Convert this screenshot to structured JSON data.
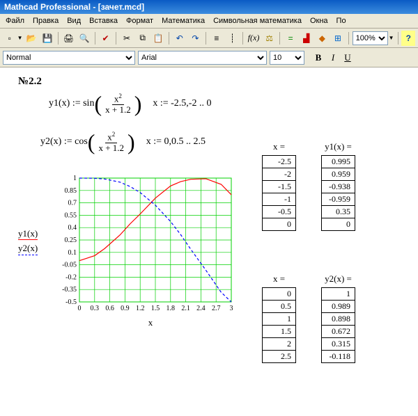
{
  "window": {
    "title": "Mathcad Professional - [зачет.mcd]"
  },
  "menu": {
    "items": [
      "Файл",
      "Правка",
      "Вид",
      "Вставка",
      "Формат",
      "Математика",
      "Символьная математика",
      "Окна",
      "По"
    ]
  },
  "toolbar": {
    "zoom": "100%",
    "icons": [
      "new",
      "open",
      "save",
      "print",
      "preview",
      "spell",
      "cut",
      "copy",
      "paste",
      "undo",
      "redo",
      "align",
      "fx",
      "units",
      "calc",
      "graph",
      "matrix",
      "help"
    ]
  },
  "format": {
    "style": "Normal",
    "font": "Arial",
    "size": "10",
    "b": "B",
    "i": "I",
    "u": "U"
  },
  "doc": {
    "problem": "№2.2",
    "expr1": {
      "lhs": "y1(x) :=",
      "func": "sin",
      "num": "x",
      "numExp": "2",
      "den": "x + 1.2",
      "range": "x := -2.5,-2 .. 0"
    },
    "expr2": {
      "lhs": "y2(x) :=",
      "func": "cos",
      "num": "x",
      "numExp": "2",
      "den": "x + 1.2",
      "range": "x := 0,0.5 .. 2.5"
    },
    "t1": {
      "xhead": "x =",
      "yhead": "y1(x) =",
      "x": [
        "-2.5",
        "-2",
        "-1.5",
        "-1",
        "-0.5",
        "0"
      ],
      "y": [
        "0.995",
        "0.959",
        "-0.938",
        "-0.959",
        "0.35",
        "0"
      ]
    },
    "t2": {
      "xhead": "x =",
      "yhead": "y2(x) =",
      "x": [
        "0",
        "0.5",
        "1",
        "1.5",
        "2",
        "2.5"
      ],
      "y": [
        "1",
        "0.989",
        "0.898",
        "0.672",
        "0.315",
        "-0.118"
      ]
    },
    "chart": {
      "type": "line",
      "xlim": [
        0,
        3
      ],
      "ylim": [
        -0.5,
        1
      ],
      "yticks": [
        "1",
        "0.85",
        "0.7",
        "0.55",
        "0.4",
        "0.25",
        "0.1",
        "-0.05",
        "-0.2",
        "-0.35",
        "-0.5"
      ],
      "xticks": [
        "0",
        "0.3",
        "0.6",
        "0.9",
        "1.2",
        "1.5",
        "1.8",
        "2.1",
        "2.4",
        "2.7",
        "3"
      ],
      "grid_color": "#00d000",
      "background_color": "#ffffff",
      "border_color": "#00d000",
      "series": [
        {
          "label": "y1(x)",
          "color": "#ff0000",
          "style": "solid",
          "points": [
            [
              0,
              0
            ],
            [
              0.3,
              0.06
            ],
            [
              0.5,
              0.147
            ],
            [
              0.8,
              0.31
            ],
            [
              1,
              0.445
            ],
            [
              1.2,
              0.565
            ],
            [
              1.5,
              0.757
            ],
            [
              1.8,
              0.905
            ],
            [
              2,
              0.957
            ],
            [
              2.2,
              0.986
            ],
            [
              2.5,
              0.992
            ],
            [
              2.8,
              0.924
            ],
            [
              3,
              0.798
            ]
          ]
        },
        {
          "label": "y2(x)",
          "color": "#0000ff",
          "style": "dashed",
          "points": [
            [
              0,
              1
            ],
            [
              0.3,
              0.998
            ],
            [
              0.5,
              0.989
            ],
            [
              0.8,
              0.951
            ],
            [
              1,
              0.898
            ],
            [
              1.2,
              0.825
            ],
            [
              1.5,
              0.672
            ],
            [
              1.8,
              0.474
            ],
            [
              2,
              0.315
            ],
            [
              2.2,
              0.137
            ],
            [
              2.5,
              -0.118
            ],
            [
              2.8,
              -0.384
            ],
            [
              3,
              -0.5
            ]
          ]
        }
      ],
      "xlabel": "x",
      "y1label": "y1(x)",
      "y2label": "y2(x)",
      "tick_fontsize": 10
    }
  }
}
